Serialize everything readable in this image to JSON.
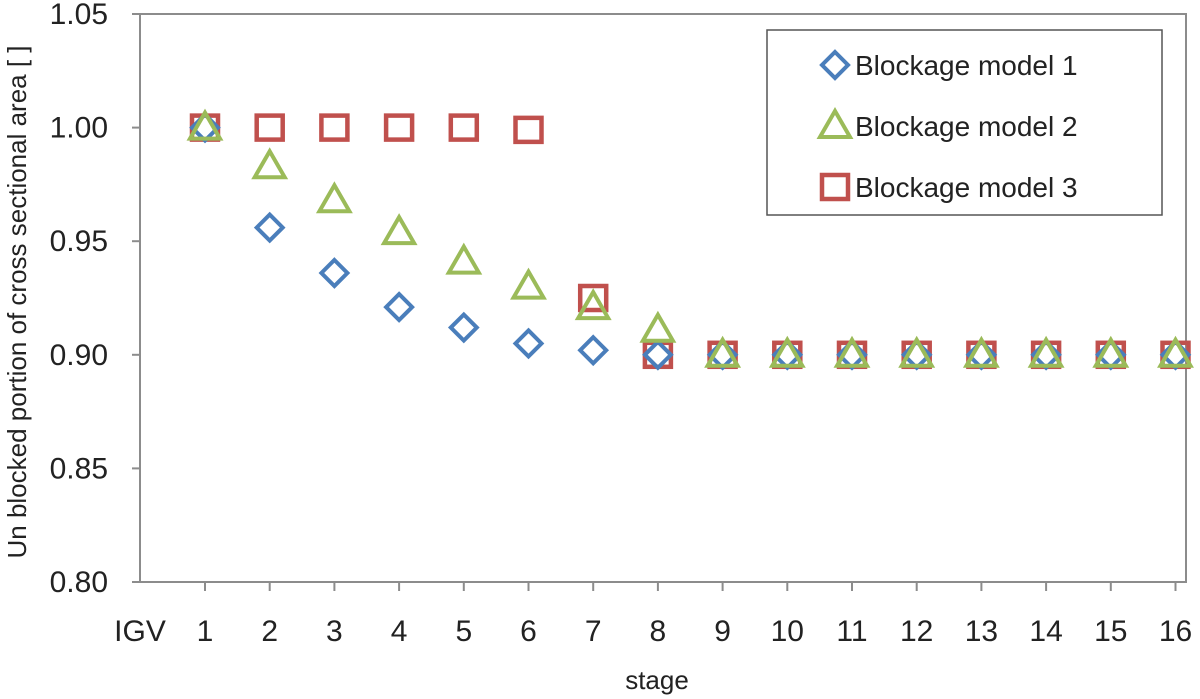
{
  "chart_data": {
    "type": "scatter",
    "title": "",
    "xlabel": "stage",
    "ylabel": "Un blocked portion of cross sectional area [ ]",
    "categories": [
      "IGV",
      "1",
      "2",
      "3",
      "4",
      "5",
      "6",
      "7",
      "8",
      "9",
      "10",
      "11",
      "12",
      "13",
      "14",
      "15",
      "16"
    ],
    "ylim": [
      0.8,
      1.05
    ],
    "yticks": [
      "0.80",
      "0.85",
      "0.90",
      "0.95",
      "1.00",
      "1.05"
    ],
    "grid": false,
    "legend_position": "top-right",
    "series": [
      {
        "name": "Blockage model 1",
        "marker": "diamond",
        "color": "#4a7ebb",
        "x": [
          "1",
          "2",
          "3",
          "4",
          "5",
          "6",
          "7",
          "8",
          "9",
          "10",
          "11",
          "12",
          "13",
          "14",
          "15",
          "16"
        ],
        "values": [
          1.0,
          0.956,
          0.936,
          0.921,
          0.912,
          0.905,
          0.902,
          0.9,
          0.9,
          0.9,
          0.9,
          0.9,
          0.9,
          0.9,
          0.9,
          0.9
        ]
      },
      {
        "name": "Blockage model 2",
        "marker": "triangle",
        "color": "#9bbb59",
        "x": [
          "1",
          "2",
          "3",
          "4",
          "5",
          "6",
          "7",
          "8",
          "9",
          "10",
          "11",
          "12",
          "13",
          "14",
          "15",
          "16"
        ],
        "values": [
          1.0,
          0.983,
          0.968,
          0.954,
          0.941,
          0.93,
          0.921,
          0.911,
          0.9,
          0.9,
          0.9,
          0.9,
          0.9,
          0.9,
          0.9,
          0.9
        ]
      },
      {
        "name": "Blockage model 3",
        "marker": "square",
        "color": "#c0504d",
        "x": [
          "1",
          "2",
          "3",
          "4",
          "5",
          "6",
          "7",
          "8",
          "9",
          "10",
          "11",
          "12",
          "13",
          "14",
          "15",
          "16"
        ],
        "values": [
          1.0,
          1.0,
          1.0,
          1.0,
          1.0,
          0.999,
          0.925,
          0.9,
          0.9,
          0.9,
          0.9,
          0.9,
          0.9,
          0.9,
          0.9,
          0.9
        ]
      }
    ]
  }
}
